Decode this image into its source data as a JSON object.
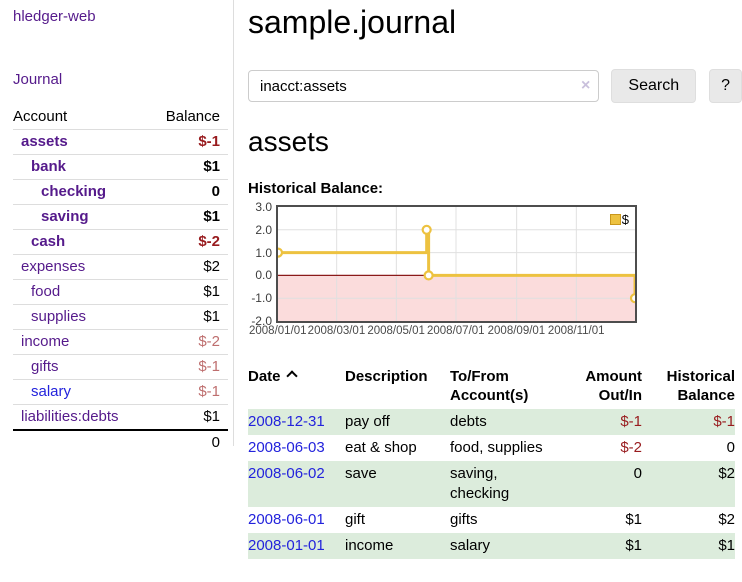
{
  "app": {
    "title": "hledger-web"
  },
  "sidebar": {
    "journal_link": "Journal",
    "accounts_table": {
      "headers": {
        "account": "Account",
        "balance": "Balance"
      },
      "items": [
        {
          "name": "assets",
          "indent": 0,
          "active": true,
          "link_style": "purple",
          "balance": "$-1"
        },
        {
          "name": "bank",
          "indent": 1,
          "active": true,
          "link_style": "purple",
          "balance": "$1"
        },
        {
          "name": "checking",
          "indent": 2,
          "active": true,
          "link_style": "purple",
          "balance": "0"
        },
        {
          "name": "saving",
          "indent": 2,
          "active": true,
          "link_style": "purple",
          "balance": "$1"
        },
        {
          "name": "cash",
          "indent": 1,
          "active": true,
          "link_style": "purple",
          "balance": "$-2"
        },
        {
          "name": "expenses",
          "indent": 0,
          "active": false,
          "link_style": "purple",
          "balance": "$2"
        },
        {
          "name": "food",
          "indent": 1,
          "active": false,
          "link_style": "purple",
          "balance": "$1"
        },
        {
          "name": "supplies",
          "indent": 1,
          "active": false,
          "link_style": "purple",
          "balance": "$1"
        },
        {
          "name": "income",
          "indent": 0,
          "active": false,
          "link_style": "purple",
          "balance": "$-2"
        },
        {
          "name": "gifts",
          "indent": 1,
          "active": false,
          "link_style": "purple",
          "balance": "$-1"
        },
        {
          "name": "salary",
          "indent": 1,
          "active": false,
          "link_style": "blue",
          "balance": "$-1"
        },
        {
          "name": "liabilities:debts",
          "indent": 0,
          "active": false,
          "link_style": "purple",
          "balance": "$1"
        }
      ],
      "total": "0"
    }
  },
  "main": {
    "title": "sample.journal",
    "search": {
      "value": "inacct:assets",
      "clear_icon": "×",
      "button_label": "Search",
      "help_label": "?"
    },
    "account_heading": "assets",
    "chart_label": "Historical Balance:"
  },
  "chart_data": {
    "type": "line",
    "title": "Historical Balance",
    "step": true,
    "legend": [
      {
        "label": "$",
        "color": "#edc240"
      }
    ],
    "legend_position": "top-right",
    "grid": true,
    "ylim": [
      -2.0,
      3.0
    ],
    "y_ticks": [
      "3.0",
      "2.0",
      "1.0",
      "0.0",
      "-1.0",
      "-2.0"
    ],
    "y_tick_values": [
      3,
      2,
      1,
      0,
      -1,
      -2
    ],
    "x_range_days": [
      0,
      365
    ],
    "x_ticks": [
      {
        "label": "2008/01/01",
        "day": 0
      },
      {
        "label": "2008/03/01",
        "day": 60
      },
      {
        "label": "2008/05/01",
        "day": 121
      },
      {
        "label": "2008/07/01",
        "day": 182
      },
      {
        "label": "2008/09/01",
        "day": 244
      },
      {
        "label": "2008/11/01",
        "day": 305
      }
    ],
    "series": [
      {
        "name": "$",
        "color": "#edc240",
        "points": [
          {
            "date": "2008-01-01",
            "day": 0,
            "value": 1
          },
          {
            "date": "2008-06-01",
            "day": 152,
            "value": 2
          },
          {
            "date": "2008-06-03",
            "day": 154,
            "value": 0
          },
          {
            "date": "2008-12-31",
            "day": 365,
            "value": -1
          }
        ]
      }
    ],
    "negative_region_color": "#fbdcdc",
    "zero_line_color": "#8b1a1a",
    "gridline_color": "#e0e0e0"
  },
  "transactions": {
    "headers": {
      "date": "Date",
      "description": "Description",
      "accounts": "To/From\nAccount(s)",
      "amount": "Amount\nOut/In",
      "balance": "Historical\nBalance"
    },
    "sort": {
      "column": "date",
      "direction": "ascending"
    },
    "rows": [
      {
        "date": "2008-12-31",
        "description": "pay off",
        "accounts": "debts",
        "amount": "$-1",
        "balance": "$-1"
      },
      {
        "date": "2008-06-03",
        "description": "eat & shop",
        "accounts": "food, supplies",
        "amount": "$-2",
        "balance": "0"
      },
      {
        "date": "2008-06-02",
        "description": "save",
        "accounts": "saving,\nchecking",
        "amount": "0",
        "balance": "$2"
      },
      {
        "date": "2008-06-01",
        "description": "gift",
        "accounts": "gifts",
        "amount": "$1",
        "balance": "$2"
      },
      {
        "date": "2008-01-01",
        "description": "income",
        "accounts": "salary",
        "amount": "$1",
        "balance": "$1"
      }
    ]
  },
  "colors": {
    "link_purple": "#551a8b",
    "link_blue": "#2323dc",
    "negative_strong": "#981b1e",
    "negative_soft": "#be6e6e",
    "row_green": "#dcecdc",
    "chart_line": "#edc240"
  }
}
